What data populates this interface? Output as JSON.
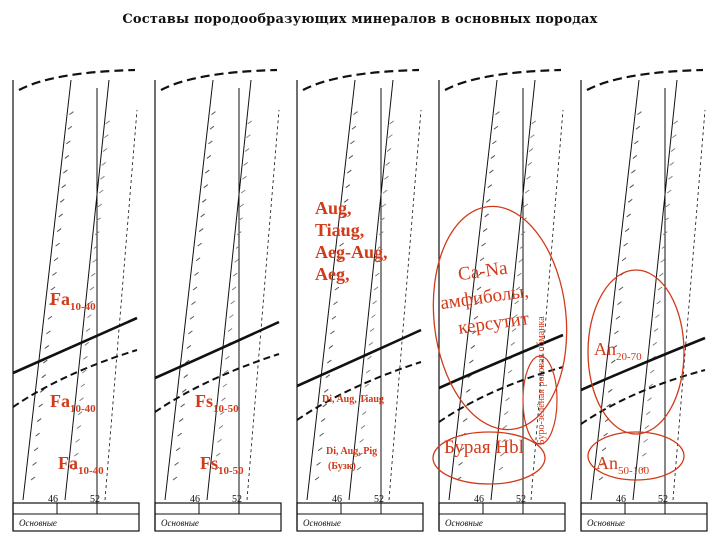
{
  "title": "Составы породообразующих минералов в основных породах",
  "panels": [
    {
      "id": "p1",
      "axis_left": "46",
      "axis_right": "52",
      "group": "Основные"
    },
    {
      "id": "p2",
      "axis_left": "46",
      "axis_right": "52",
      "group": "Основные"
    },
    {
      "id": "p3",
      "axis_left": "46",
      "axis_right": "52",
      "group": "Основные"
    },
    {
      "id": "p4",
      "axis_left": "46",
      "axis_right": "52",
      "group": "Основные"
    },
    {
      "id": "p5",
      "axis_left": "46",
      "axis_right": "52",
      "group": "Основные"
    }
  ],
  "annotations": {
    "p1_top_main": "Fa",
    "p1_top_sub": "10-40",
    "p1_mid_main": "Fa",
    "p1_mid_sub": "10-40",
    "p1_bot_main": "Fa",
    "p1_bot_sub": "10-40",
    "p2_mid_main": "Fs",
    "p2_mid_sub": "10-50",
    "p2_bot_main": "Fs",
    "p2_bot_sub": "10-50",
    "p3_pyroxenes": [
      "Aug,",
      "Tiaug,",
      "Aeg-Aug,",
      "Aeg,"
    ],
    "p3_mid": "Di, Aug, Tiaug",
    "p3_bot_1": "Di, Aug, Pig",
    "p3_bot_2": "(Бузк)",
    "p4_amph_1": "Ca-Na",
    "p4_amph_2": "амфиболы,",
    "p4_amph_3": "керсутит",
    "p4_vertical": "Буро-зелёная роговая обманка",
    "p4_bot": "Бурая Hbl",
    "p5_mid_main": "An",
    "p5_mid_sub": "20-70",
    "p5_bot_main": "An",
    "p5_bot_sub": "50-100"
  },
  "colors": {
    "annotation": "#d23a1a",
    "lines": "#111111"
  }
}
